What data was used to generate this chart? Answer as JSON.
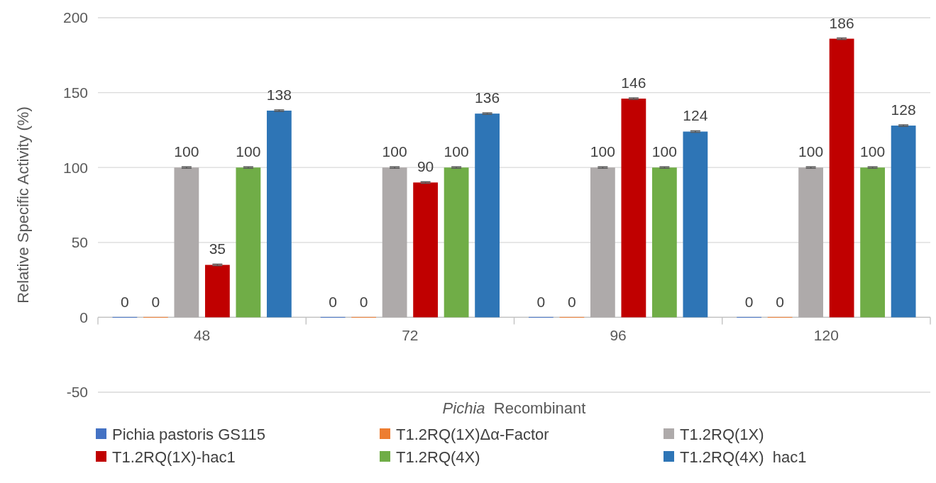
{
  "chart_data": {
    "type": "bar",
    "xlabel": "Pichia  Recombinant",
    "ylabel": "Relative Specific Activity (%)",
    "categories": [
      "48",
      "72",
      "96",
      "120"
    ],
    "ylim": [
      -50,
      200
    ],
    "yticks": [
      -50,
      0,
      50,
      100,
      150,
      200
    ],
    "grid": "y",
    "legend": "bottom",
    "data_labels": true,
    "series": [
      {
        "name": "Pichia pastoris GS115",
        "color": "#4472c4",
        "values": [
          0,
          0,
          0,
          0
        ]
      },
      {
        "name": "T1.2RQ(1X)Δα-Factor",
        "color": "#ed7d31",
        "values": [
          0,
          0,
          0,
          0
        ]
      },
      {
        "name": "T1.2RQ(1X)",
        "color": "#aeaaaa",
        "values": [
          100,
          100,
          100,
          100
        ],
        "errors": [
          0.5,
          0.5,
          0.5,
          0.5
        ]
      },
      {
        "name": "T1.2RQ(1X)-hac1",
        "color": "#c00000",
        "values": [
          35,
          90,
          146,
          186
        ],
        "errors": [
          0.5,
          0.5,
          0.5,
          0.5
        ]
      },
      {
        "name": "T1.2RQ(4X)",
        "color": "#70ad47",
        "values": [
          100,
          100,
          100,
          100
        ],
        "errors": [
          0.5,
          0.5,
          0.5,
          0.5
        ]
      },
      {
        "name": "T1.2RQ(4X)  hac1",
        "color": "#2e75b6",
        "values": [
          138,
          136,
          124,
          128
        ],
        "errors": [
          0.5,
          0.5,
          0.5,
          0.5
        ]
      }
    ]
  }
}
